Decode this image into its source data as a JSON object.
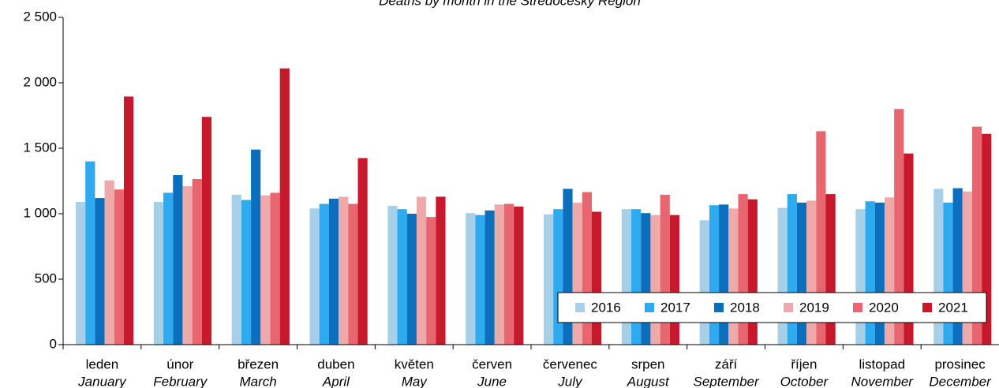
{
  "chart_data": {
    "type": "bar",
    "title": "Deaths by month in the Středočeský Region",
    "categories": [
      "leden",
      "únor",
      "březen",
      "duben",
      "květen",
      "červen",
      "červenec",
      "srpen",
      "září",
      "říjen",
      "listopad",
      "prosinec"
    ],
    "category_translations": [
      "January",
      "February",
      "March",
      "April",
      "May",
      "June",
      "July",
      "August",
      "September",
      "October",
      "November",
      "December"
    ],
    "series": [
      {
        "name": "2016",
        "color": "#a8cfe8",
        "values": [
          1090,
          1090,
          1145,
          1040,
          1060,
          1005,
          995,
          1035,
          950,
          1045,
          1035,
          1190
        ]
      },
      {
        "name": "2017",
        "color": "#2eaaf0",
        "values": [
          1400,
          1160,
          1105,
          1075,
          1035,
          990,
          1035,
          1035,
          1065,
          1150,
          1095,
          1085
        ]
      },
      {
        "name": "2018",
        "color": "#0b6fbd",
        "values": [
          1120,
          1295,
          1490,
          1115,
          1000,
          1025,
          1190,
          1005,
          1070,
          1085,
          1085,
          1195
        ]
      },
      {
        "name": "2019",
        "color": "#eeaaab",
        "values": [
          1255,
          1210,
          1140,
          1130,
          1130,
          1070,
          1085,
          990,
          1040,
          1100,
          1125,
          1170
        ]
      },
      {
        "name": "2020",
        "color": "#e8666f",
        "values": [
          1185,
          1265,
          1160,
          1075,
          975,
          1075,
          1165,
          1145,
          1150,
          1630,
          1800,
          1665
        ]
      },
      {
        "name": "2021",
        "color": "#c8182b",
        "values": [
          1895,
          1740,
          2110,
          1425,
          1130,
          1055,
          1015,
          990,
          1110,
          1150,
          1460,
          1610
        ]
      }
    ],
    "ylim": [
      0,
      2500
    ],
    "yticks": [
      0,
      500,
      {
        "value": 1000,
        "label": "1 000"
      },
      {
        "value": 1500,
        "label": "1 500"
      },
      {
        "value": 2000,
        "label": "2 000"
      },
      {
        "value": 2500,
        "label": "2 500"
      }
    ],
    "grid": false,
    "legend": "lower right"
  }
}
